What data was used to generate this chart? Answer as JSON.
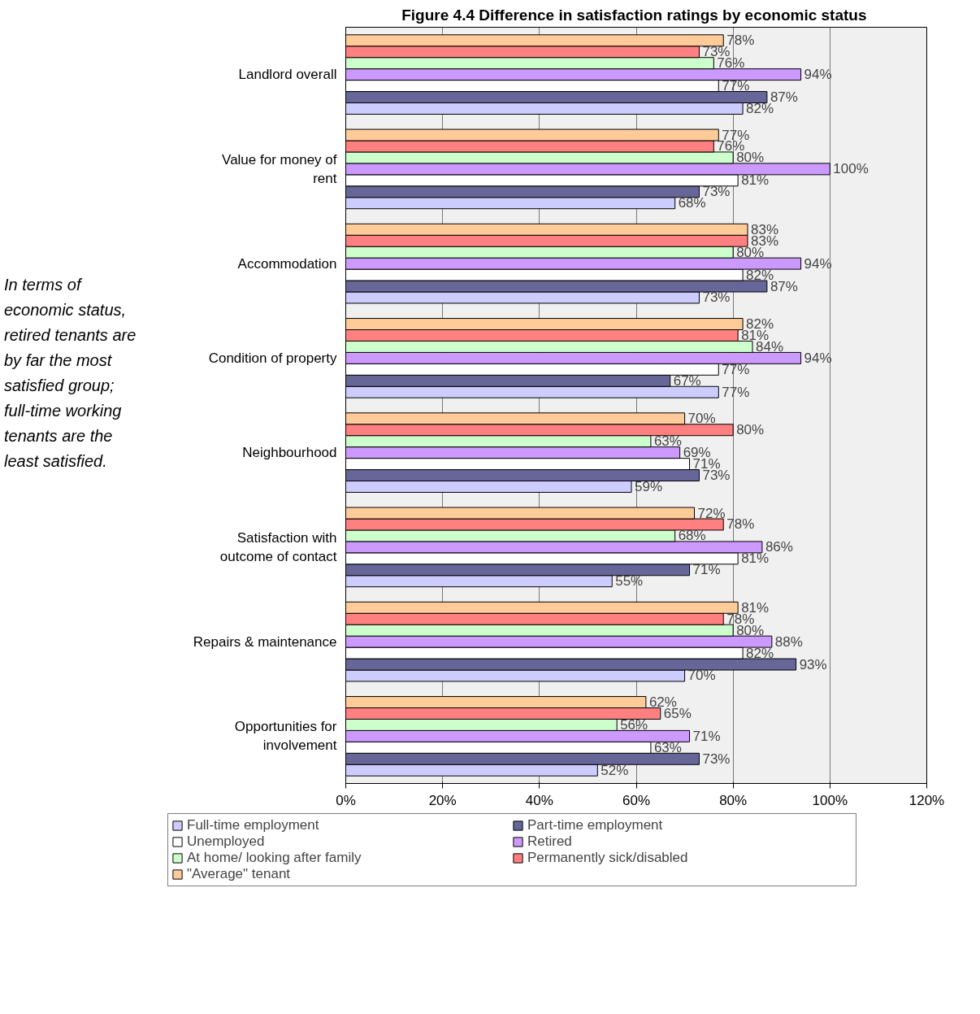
{
  "chart_data": {
    "type": "bar",
    "orientation": "horizontal",
    "title": "Figure 4.4  Difference in satisfaction ratings by economic status",
    "categories": [
      "Landlord overall",
      "Value for money of rent",
      "Accommodation",
      "Condition of property",
      "Neighbourhood",
      "Satisfaction with outcome of contact",
      "Repairs & maintenance",
      "Opportunities for involvement"
    ],
    "series": [
      {
        "name": "Full-time employment",
        "color": "#ccccff",
        "values": [
          82,
          68,
          73,
          77,
          59,
          55,
          70,
          52
        ],
        "value_labels": [
          "82%",
          "68%",
          "73%",
          "77%",
          "59%",
          "55%",
          "70%",
          "52%"
        ]
      },
      {
        "name": "Part-time employment",
        "color": "#666699",
        "values": [
          87,
          73,
          87,
          67,
          73,
          71,
          93,
          73
        ],
        "value_labels": [
          "87%",
          "73%",
          "87%",
          "67%",
          "73%",
          "71%",
          "93%",
          "73%"
        ]
      },
      {
        "name": "Unemployed",
        "color": "#ffffff",
        "values": [
          77,
          81,
          82,
          77,
          71,
          81,
          82,
          63
        ],
        "value_labels": [
          "77%",
          "81%",
          "82%",
          "77%",
          "71%",
          "81%",
          "82%",
          "63%"
        ]
      },
      {
        "name": "Retired",
        "color": "#cc99ff",
        "values": [
          94,
          100,
          94,
          94,
          69,
          86,
          88,
          71
        ],
        "value_labels": [
          "94%",
          "100%",
          "94%",
          "94%",
          "69%",
          "86%",
          "88%",
          "71%"
        ]
      },
      {
        "name": "At home/ looking after family",
        "color": "#ccffcc",
        "values": [
          76,
          80,
          80,
          84,
          63,
          68,
          80,
          56
        ],
        "value_labels": [
          "76%",
          "80%",
          "80%",
          "84%",
          "63%",
          "68%",
          "80%",
          "56%"
        ]
      },
      {
        "name": "Permanently sick/disabled",
        "color": "#ff8080",
        "values": [
          73,
          76,
          83,
          81,
          80,
          78,
          78,
          65
        ],
        "value_labels": [
          "73%",
          "76%",
          "83%",
          "81%",
          "80%",
          "78%",
          "78%",
          "65%"
        ]
      },
      {
        "name": "\"Average\" tenant",
        "color": "#ffcc99",
        "values": [
          78,
          77,
          83,
          82,
          70,
          72,
          81,
          62
        ],
        "value_labels": [
          "78%",
          "77%",
          "83%",
          "82%",
          "70%",
          "72%",
          "81%",
          "62%"
        ]
      }
    ],
    "xlim": [
      0,
      120
    ],
    "xticks": [
      {
        "value": 0,
        "label": "0%"
      },
      {
        "value": 20,
        "label": "20%"
      },
      {
        "value": 40,
        "label": "40%"
      },
      {
        "value": 60,
        "label": "60%"
      },
      {
        "value": 80,
        "label": "80%"
      },
      {
        "value": 100,
        "label": "100%"
      },
      {
        "value": 120,
        "label": "120%"
      }
    ],
    "grid": "x",
    "legend": "bottom",
    "annotations": [
      "In terms of economic status, retired tenants are by far the most satisfied group; full-time working tenants are the least satisfied."
    ]
  }
}
